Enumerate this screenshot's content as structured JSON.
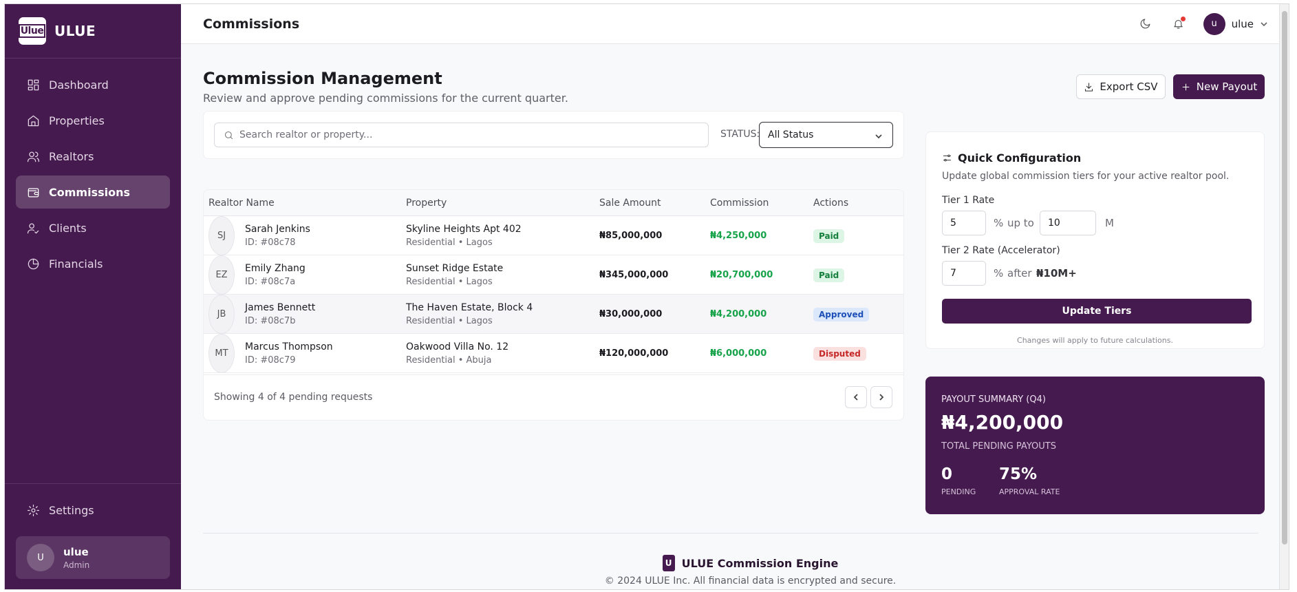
{
  "brand": {
    "logo_text": "Ulue",
    "name": "ULUE"
  },
  "nav": {
    "items": [
      {
        "label": "Dashboard",
        "icon": "dashboard-icon"
      },
      {
        "label": "Properties",
        "icon": "home-icon"
      },
      {
        "label": "Realtors",
        "icon": "users-icon"
      },
      {
        "label": "Commissions",
        "icon": "wallet-icon",
        "active": true
      },
      {
        "label": "Clients",
        "icon": "user-check-icon"
      },
      {
        "label": "Financials",
        "icon": "pie-chart-icon"
      }
    ],
    "settings_label": "Settings"
  },
  "sidebar_user": {
    "initial": "U",
    "name": "ulue",
    "role": "Admin"
  },
  "topbar": {
    "title": "Commissions",
    "profile_initial": "u",
    "profile_name": "ulue"
  },
  "page": {
    "title": "Commission Management",
    "subtitle": "Review and approve pending commissions for the current quarter.",
    "export_label": "Export CSV",
    "new_payout_label": "New Payout"
  },
  "filters": {
    "search_placeholder": "Search realtor or property...",
    "status_label": "STATUS:",
    "status_value": "All Status"
  },
  "table": {
    "headers": [
      "Realtor Name",
      "Property",
      "Sale Amount",
      "Commission",
      "Actions"
    ],
    "rows": [
      {
        "initials": "SJ",
        "name": "Sarah Jenkins",
        "id": "ID: #08c78",
        "property": "Skyline Heights Apt 402",
        "property_sub": "Residential • Lagos",
        "sale": "₦85,000,000",
        "commission": "₦4,250,000",
        "status": "Paid"
      },
      {
        "initials": "EZ",
        "name": "Emily Zhang",
        "id": "ID: #08c7a",
        "property": "Sunset Ridge Estate",
        "property_sub": "Residential • Lagos",
        "sale": "₦345,000,000",
        "commission": "₦20,700,000",
        "status": "Paid"
      },
      {
        "initials": "JB",
        "name": "James Bennett",
        "id": "ID: #08c7b",
        "property": "The Haven Estate, Block 4",
        "property_sub": "Residential • Lagos",
        "sale": "₦30,000,000",
        "commission": "₦4,200,000",
        "status": "Approved"
      },
      {
        "initials": "MT",
        "name": "Marcus Thompson",
        "id": "ID: #08c79",
        "property": "Oakwood Villa No. 12",
        "property_sub": "Residential • Abuja",
        "sale": "₦120,000,000",
        "commission": "₦6,000,000",
        "status": "Disputed"
      }
    ],
    "footer_text": "Showing 4 of 4 pending requests"
  },
  "config": {
    "title": "Quick Configuration",
    "subtitle": "Update global commission tiers for your active realtor pool.",
    "tier1_label": "Tier 1 Rate",
    "tier1_rate": "5",
    "percent": "%",
    "up_to": "up to",
    "tier1_limit": "10",
    "unit_m": "M",
    "tier2_label": "Tier 2 Rate (Accelerator)",
    "tier2_rate": "7",
    "after": "after",
    "tier2_threshold": "₦10M+",
    "update_label": "Update Tiers",
    "note": "Changes will apply to future calculations."
  },
  "payout": {
    "label": "PAYOUT SUMMARY (Q4)",
    "amount": "₦4,200,000",
    "sub": "TOTAL PENDING PAYOUTS",
    "pending_value": "0",
    "pending_label": "PENDING",
    "approval_value": "75%",
    "approval_label": "APPROVAL RATE"
  },
  "footer": {
    "logo_text": "U",
    "brand": "ULUE Commission Engine",
    "copyright": "© 2024 ULUE Inc. All financial data is encrypted and secure."
  },
  "colors": {
    "brand": "#451a4e",
    "paid": "#15803d",
    "approved": "#1d4fb8",
    "disputed": "#c62828",
    "commission": "#16a34a"
  }
}
